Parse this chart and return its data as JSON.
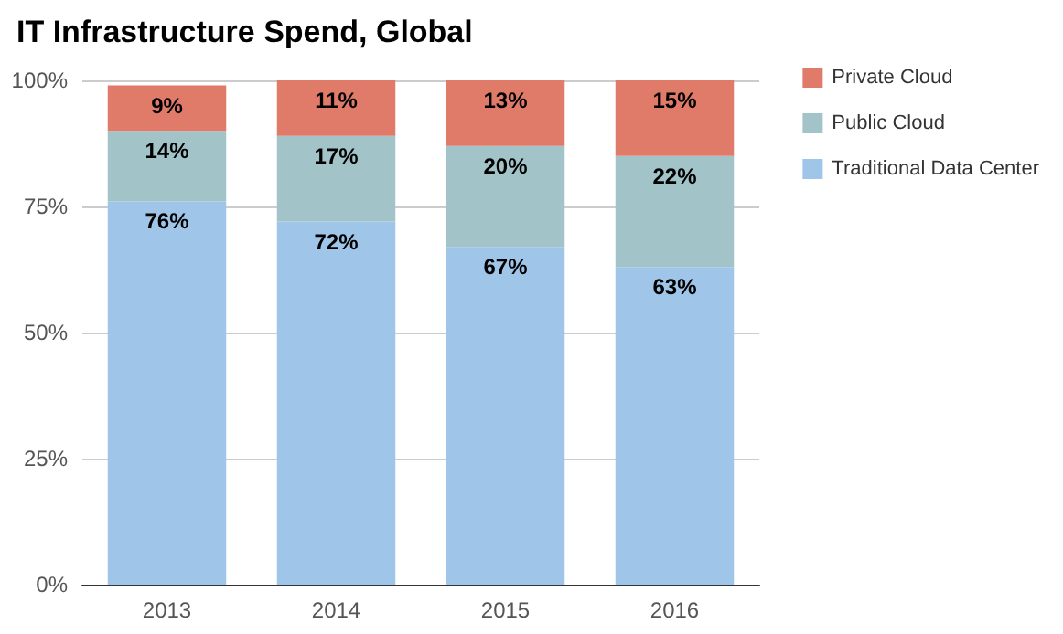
{
  "chart_data": {
    "type": "bar",
    "title": "IT Infrastructure Spend, Global",
    "categories": [
      "2013",
      "2014",
      "2015",
      "2016"
    ],
    "stacked": true,
    "series": [
      {
        "name": "Traditional Data Center",
        "color": "#9fc5e8",
        "values": [
          76,
          72,
          67,
          63
        ],
        "value_labels": [
          "76%",
          "72%",
          "67%",
          "63%"
        ]
      },
      {
        "name": "Public Cloud",
        "color": "#a2c4c9",
        "values": [
          14,
          17,
          20,
          22
        ],
        "value_labels": [
          "14%",
          "17%",
          "20%",
          "22%"
        ]
      },
      {
        "name": "Private Cloud",
        "color": "#e07b69",
        "values": [
          9,
          11,
          13,
          15
        ],
        "value_labels": [
          "9%",
          "11%",
          "13%",
          "15%"
        ]
      }
    ],
    "ylim": [
      0,
      100
    ],
    "yticks": [
      {
        "value": 0,
        "label": "0%"
      },
      {
        "value": 25,
        "label": "25%"
      },
      {
        "value": 50,
        "label": "50%"
      },
      {
        "value": 75,
        "label": "75%"
      },
      {
        "value": 100,
        "label": "100%"
      }
    ],
    "grid": "y",
    "legend": "right"
  }
}
